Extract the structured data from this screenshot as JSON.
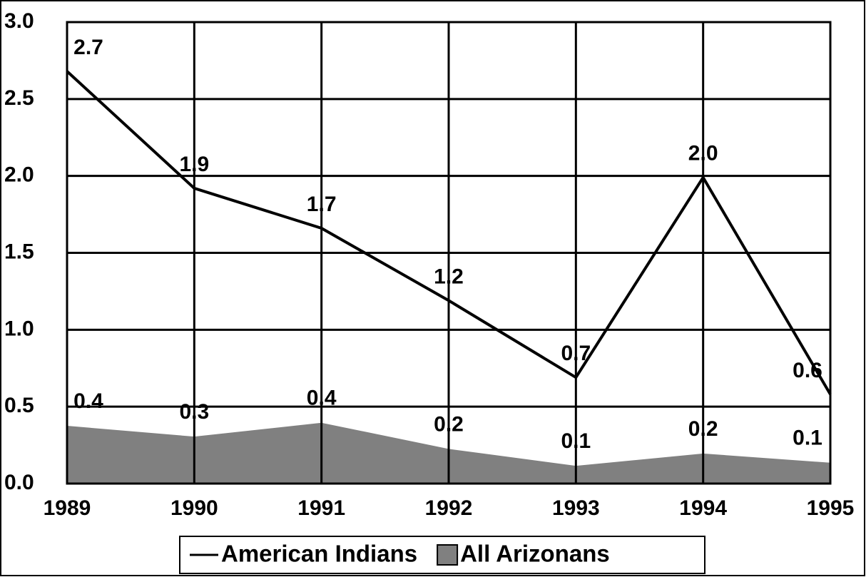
{
  "chart_data": {
    "type": "line",
    "x": [
      1989,
      1990,
      1991,
      1992,
      1993,
      1994,
      1995
    ],
    "xlim": [
      1989,
      1995
    ],
    "ylim": [
      0,
      3
    ],
    "yticks": [
      {
        "value": 0,
        "label": "0.0"
      },
      {
        "value": 0.5,
        "label": "0.5"
      },
      {
        "value": 1,
        "label": "1.0"
      },
      {
        "value": 1.5,
        "label": "1.5"
      },
      {
        "value": 2,
        "label": "2.0"
      },
      {
        "value": 2.5,
        "label": "2.5"
      },
      {
        "value": 3,
        "label": "3.0"
      }
    ],
    "grid": true,
    "legend": "bottom",
    "series": [
      {
        "name": "American Indians",
        "kind": "line",
        "color": "#000000",
        "values": [
          2.68,
          1.92,
          1.66,
          1.19,
          0.69,
          1.99,
          0.58
        ],
        "value_labels": [
          "2.7",
          "1.9",
          "1.7",
          "1.2",
          "0.7",
          "2.0",
          "0.6"
        ]
      },
      {
        "name": "All Arizonans",
        "kind": "area",
        "color": "#808080",
        "values": [
          0.38,
          0.31,
          0.4,
          0.23,
          0.12,
          0.2,
          0.14
        ],
        "value_labels": [
          "0.4",
          "0.3",
          "0.4",
          "0.2",
          "0.1",
          "0.2",
          "0.1"
        ]
      }
    ]
  }
}
